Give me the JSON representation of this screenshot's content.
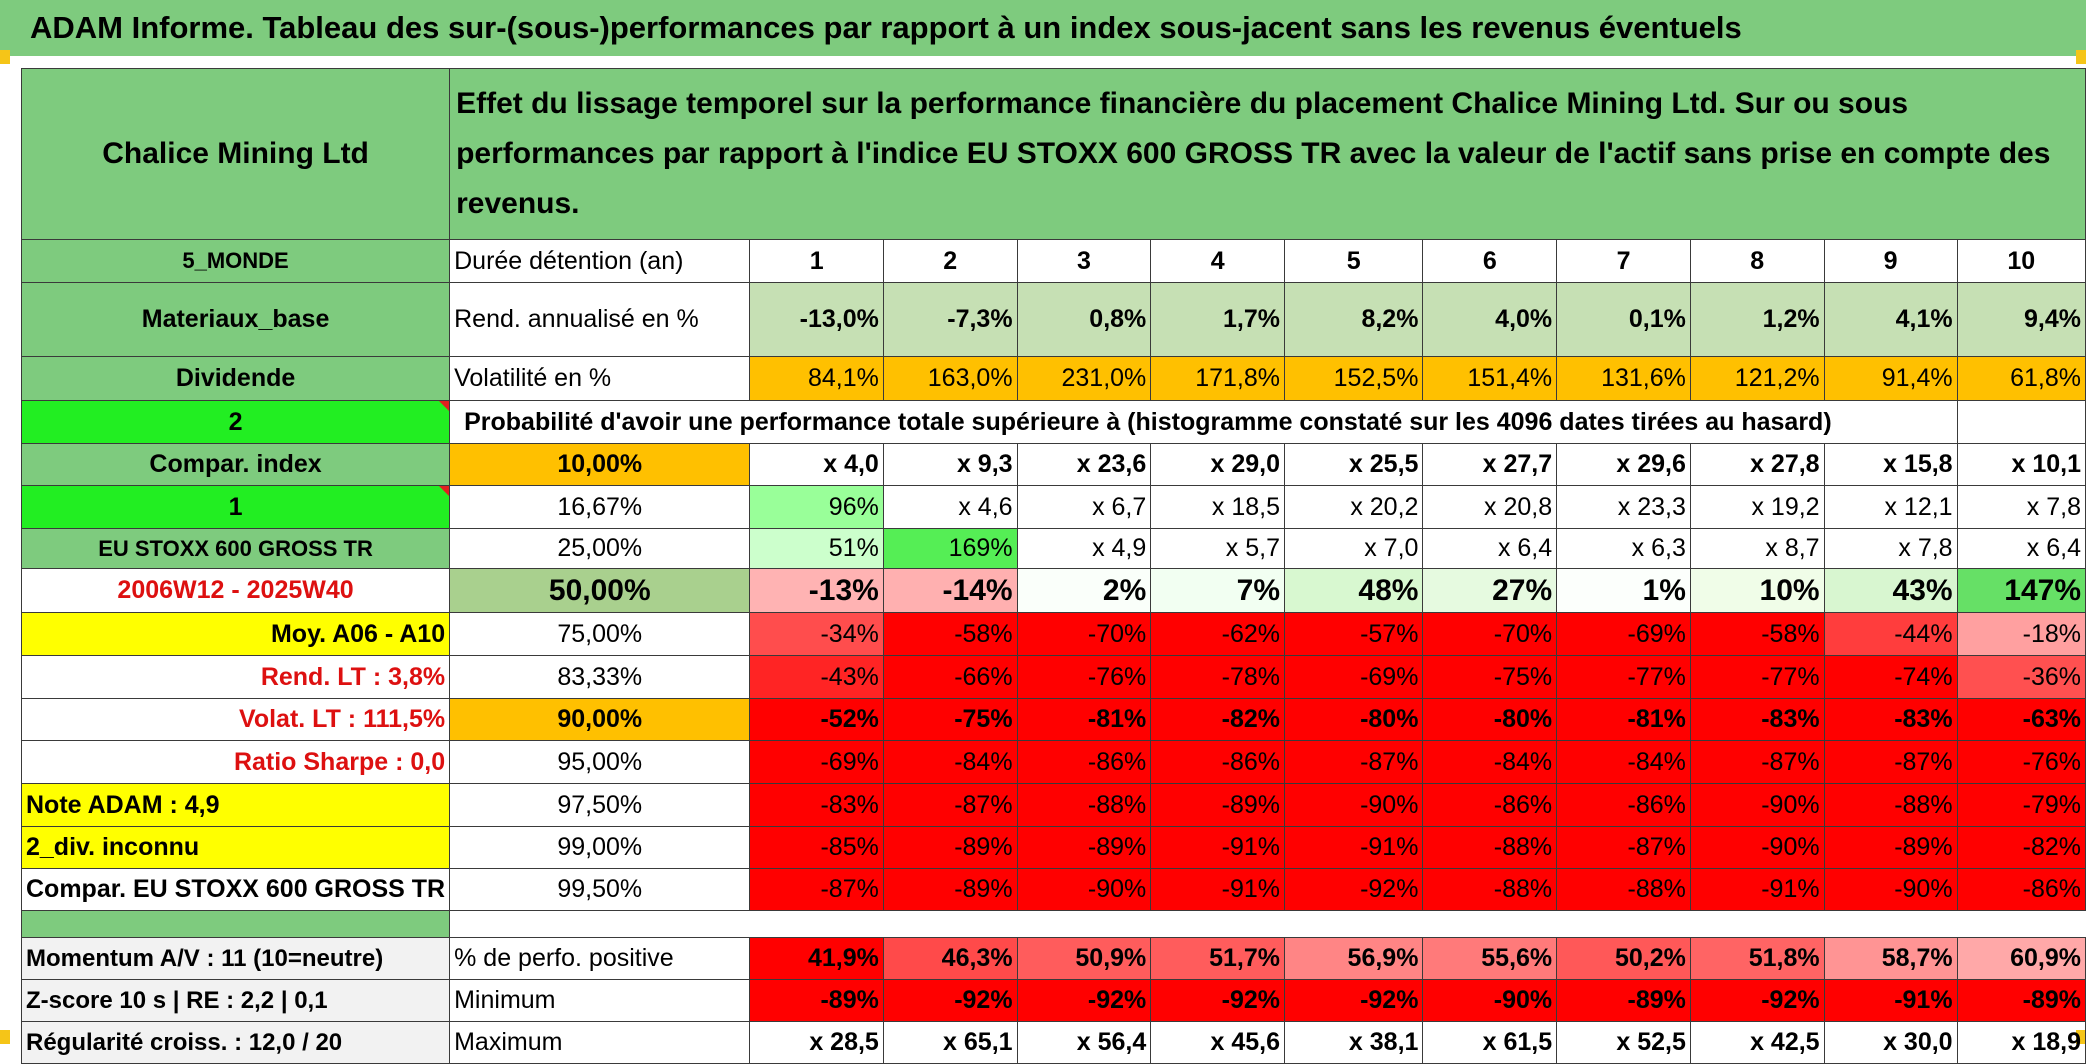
{
  "banner": "ADAM Informe. Tableau des sur-(sous-)performances par rapport à un index sous-jacent sans les revenus éventuels",
  "header": {
    "name": "Chalice Mining Ltd",
    "description": "Effet du lissage temporel sur la performance financière du placement Chalice Mining Ltd. Sur ou sous performances par rapport à l'indice EU STOXX 600 GROSS TR avec la valeur de l'actif sans prise en compte des revenus."
  },
  "left_labels": {
    "region": "5_MONDE",
    "sector": "Materiaux_base",
    "dividend": "Dividende",
    "two": "2",
    "compar_index": "Compar. index",
    "one": "1",
    "index_name": "EU STOXX 600 GROSS TR",
    "period": "2006W12 - 2025W40",
    "moy": "Moy. A06 - A10",
    "rend_lt": "Rend. LT :   3,8%",
    "volat_lt": "Volat. LT :   111,5%",
    "sharpe": "Ratio Sharpe :    0,0",
    "note": "Note ADAM : 4,9",
    "div": "2_div. inconnu",
    "compar": "Compar. EU STOXX 600 GROSS TR",
    "momentum": "Momentum A/V : 11 (10=neutre)",
    "zscore": "Z-score 10 s | RE : 2,2 | 0,1",
    "regularite": "Régularité croiss. : 12,0 / 20"
  },
  "row_labels": {
    "duree": "Durée détention (an)",
    "rend": "Rend. annualisé en %",
    "volat": "Volatilité en %",
    "proba": "Probabilité d'avoir une performance totale supérieure à (histogramme constaté sur les 4096 dates tirées au hasard)",
    "positive": "% de perfo. positive",
    "minimum": "Minimum",
    "maximum": "Maximum"
  },
  "years": [
    "1",
    "2",
    "3",
    "4",
    "5",
    "6",
    "7",
    "8",
    "9",
    "10"
  ],
  "rend": [
    "-13,0%",
    "-7,3%",
    "0,8%",
    "1,7%",
    "8,2%",
    "4,0%",
    "0,1%",
    "1,2%",
    "4,1%",
    "9,4%"
  ],
  "volat": [
    "84,1%",
    "163,0%",
    "231,0%",
    "171,8%",
    "152,5%",
    "151,4%",
    "131,6%",
    "121,2%",
    "91,4%",
    "61,8%"
  ],
  "percentiles": [
    {
      "p": "10,00%",
      "vals": [
        "x 4,0",
        "x 9,3",
        "x 23,6",
        "x 29,0",
        "x 25,5",
        "x 27,7",
        "x 29,6",
        "x 27,8",
        "x 15,8",
        "x 10,1"
      ]
    },
    {
      "p": "16,67%",
      "vals": [
        "96%",
        "x 4,6",
        "x 6,7",
        "x 18,5",
        "x 20,2",
        "x 20,8",
        "x 23,3",
        "x 19,2",
        "x 12,1",
        "x 7,8"
      ]
    },
    {
      "p": "25,00%",
      "vals": [
        "51%",
        "169%",
        "x 4,9",
        "x 5,7",
        "x 7,0",
        "x 6,4",
        "x 6,3",
        "x 8,7",
        "x 7,8",
        "x 6,4"
      ]
    },
    {
      "p": "50,00%",
      "vals": [
        "-13%",
        "-14%",
        "2%",
        "7%",
        "48%",
        "27%",
        "1%",
        "10%",
        "43%",
        "147%"
      ]
    },
    {
      "p": "75,00%",
      "vals": [
        "-34%",
        "-58%",
        "-70%",
        "-62%",
        "-57%",
        "-70%",
        "-69%",
        "-58%",
        "-44%",
        "-18%"
      ]
    },
    {
      "p": "83,33%",
      "vals": [
        "-43%",
        "-66%",
        "-76%",
        "-78%",
        "-69%",
        "-75%",
        "-77%",
        "-77%",
        "-74%",
        "-36%"
      ]
    },
    {
      "p": "90,00%",
      "vals": [
        "-52%",
        "-75%",
        "-81%",
        "-82%",
        "-80%",
        "-80%",
        "-81%",
        "-83%",
        "-83%",
        "-63%"
      ]
    },
    {
      "p": "95,00%",
      "vals": [
        "-69%",
        "-84%",
        "-86%",
        "-86%",
        "-87%",
        "-84%",
        "-84%",
        "-87%",
        "-87%",
        "-76%"
      ]
    },
    {
      "p": "97,50%",
      "vals": [
        "-83%",
        "-87%",
        "-88%",
        "-89%",
        "-90%",
        "-86%",
        "-86%",
        "-90%",
        "-88%",
        "-79%"
      ]
    },
    {
      "p": "99,00%",
      "vals": [
        "-85%",
        "-89%",
        "-89%",
        "-91%",
        "-91%",
        "-88%",
        "-87%",
        "-90%",
        "-89%",
        "-82%"
      ]
    },
    {
      "p": "99,50%",
      "vals": [
        "-87%",
        "-89%",
        "-90%",
        "-91%",
        "-92%",
        "-88%",
        "-88%",
        "-91%",
        "-90%",
        "-86%"
      ]
    }
  ],
  "positive": [
    "41,9%",
    "46,3%",
    "50,9%",
    "51,7%",
    "56,9%",
    "55,6%",
    "50,2%",
    "51,8%",
    "58,7%",
    "60,9%"
  ],
  "minimum": [
    "-89%",
    "-92%",
    "-92%",
    "-92%",
    "-92%",
    "-90%",
    "-89%",
    "-92%",
    "-91%",
    "-89%"
  ],
  "maximum": [
    "x 28,5",
    "x 65,1",
    "x 56,4",
    "x 45,6",
    "x 38,1",
    "x 61,5",
    "x 52,5",
    "x 42,5",
    "x 30,0",
    "x 18,9"
  ],
  "colors": {
    "header_green": "#7ecb7e",
    "light_green": "#c6e0b4",
    "bright_green": "#22ee22",
    "orange": "#ffc000",
    "yellow": "#ffff00",
    "red": "#ff0000",
    "label_red": "#dd1010"
  }
}
